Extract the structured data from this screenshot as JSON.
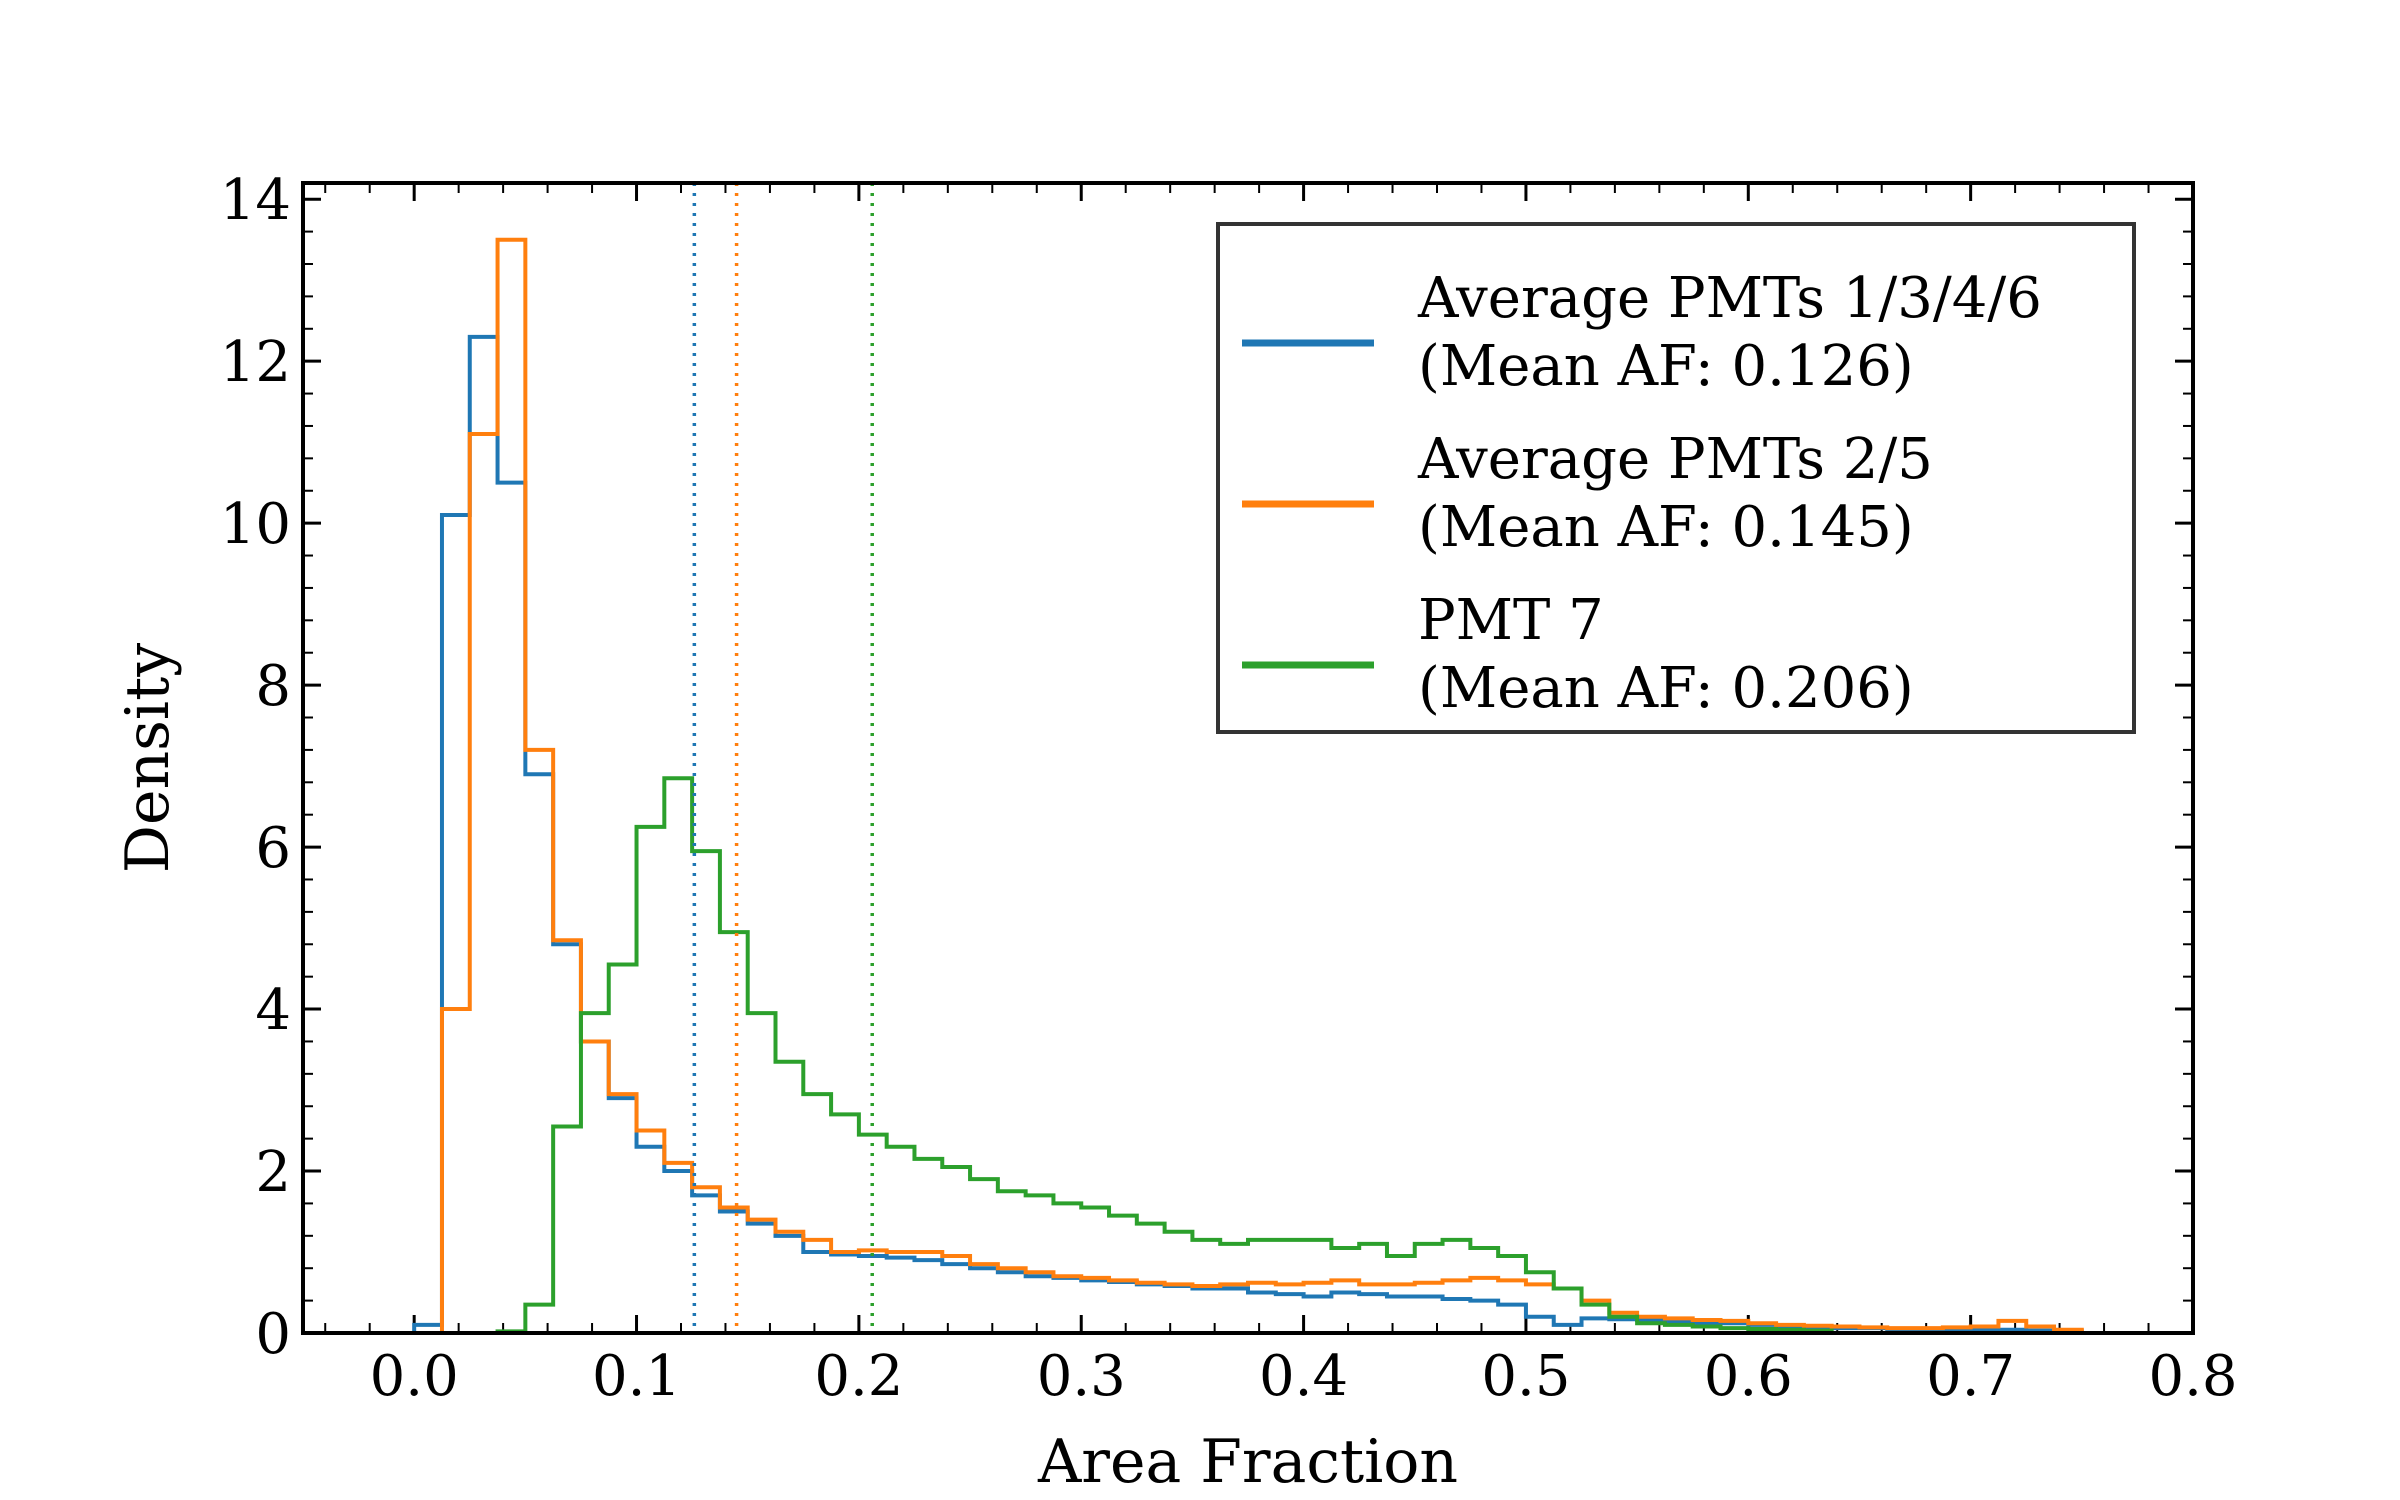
{
  "chart_data": {
    "type": "histogram-step",
    "xlabel": "Area Fraction",
    "ylabel": "Density",
    "xlim": [
      -0.05,
      0.8
    ],
    "ylim": [
      0,
      14.2
    ],
    "xticks": [
      "0.0",
      "0.1",
      "0.2",
      "0.3",
      "0.4",
      "0.5",
      "0.6",
      "0.7",
      "0.8"
    ],
    "yticks": [
      "0",
      "2",
      "4",
      "6",
      "8",
      "10",
      "12",
      "14"
    ],
    "bin_width": 0.0125,
    "legend": {
      "placement": "top-right"
    },
    "series": [
      {
        "label_line1": "Average PMTs 1/3/4/6",
        "label_line2": "(Mean AF: 0.126)",
        "color": "#1f77b4",
        "mean": 0.126,
        "bin_start": 0.0,
        "values": [
          0.1,
          10.1,
          12.3,
          10.5,
          6.9,
          4.8,
          3.6,
          2.9,
          2.3,
          2.0,
          1.7,
          1.5,
          1.35,
          1.2,
          1.0,
          0.97,
          0.95,
          0.93,
          0.9,
          0.85,
          0.8,
          0.75,
          0.7,
          0.68,
          0.65,
          0.63,
          0.6,
          0.58,
          0.55,
          0.55,
          0.5,
          0.48,
          0.45,
          0.5,
          0.48,
          0.45,
          0.45,
          0.42,
          0.4,
          0.35,
          0.2,
          0.1,
          0.18,
          0.17,
          0.16,
          0.14,
          0.13,
          0.12,
          0.1,
          0.08,
          0.07,
          0.06,
          0.06,
          0.05,
          0.05,
          0.05,
          0.04,
          0.04,
          0.03,
          0.02
        ]
      },
      {
        "label_line1": "Average PMTs 2/5",
        "label_line2": "(Mean AF: 0.145)",
        "color": "#ff7f0e",
        "mean": 0.145,
        "bin_start": 0.0,
        "values": [
          0.0,
          4.0,
          11.1,
          13.5,
          7.2,
          4.85,
          3.6,
          2.95,
          2.5,
          2.1,
          1.8,
          1.55,
          1.4,
          1.25,
          1.15,
          1.0,
          1.02,
          1.0,
          1.0,
          0.95,
          0.85,
          0.8,
          0.75,
          0.7,
          0.68,
          0.65,
          0.62,
          0.6,
          0.58,
          0.6,
          0.62,
          0.6,
          0.62,
          0.65,
          0.6,
          0.6,
          0.62,
          0.65,
          0.68,
          0.65,
          0.6,
          0.55,
          0.4,
          0.25,
          0.2,
          0.18,
          0.16,
          0.15,
          0.12,
          0.1,
          0.09,
          0.08,
          0.07,
          0.06,
          0.06,
          0.07,
          0.08,
          0.15,
          0.08,
          0.04
        ]
      },
      {
        "label_line1": "PMT 7",
        "label_line2": "(Mean AF: 0.206)",
        "color": "#2ca02c",
        "mean": 0.206,
        "bin_start": 0.0,
        "values": [
          0.0,
          0.0,
          0.0,
          0.02,
          0.35,
          2.55,
          3.95,
          4.55,
          6.25,
          6.85,
          5.95,
          4.95,
          3.95,
          3.35,
          2.95,
          2.7,
          2.45,
          2.3,
          2.15,
          2.05,
          1.9,
          1.75,
          1.7,
          1.6,
          1.55,
          1.45,
          1.35,
          1.25,
          1.15,
          1.1,
          1.15,
          1.15,
          1.15,
          1.05,
          1.1,
          0.95,
          1.1,
          1.15,
          1.05,
          0.95,
          0.75,
          0.55,
          0.35,
          0.2,
          0.12,
          0.1,
          0.08,
          0.06,
          0.05,
          0.04,
          0.03
        ]
      }
    ]
  }
}
